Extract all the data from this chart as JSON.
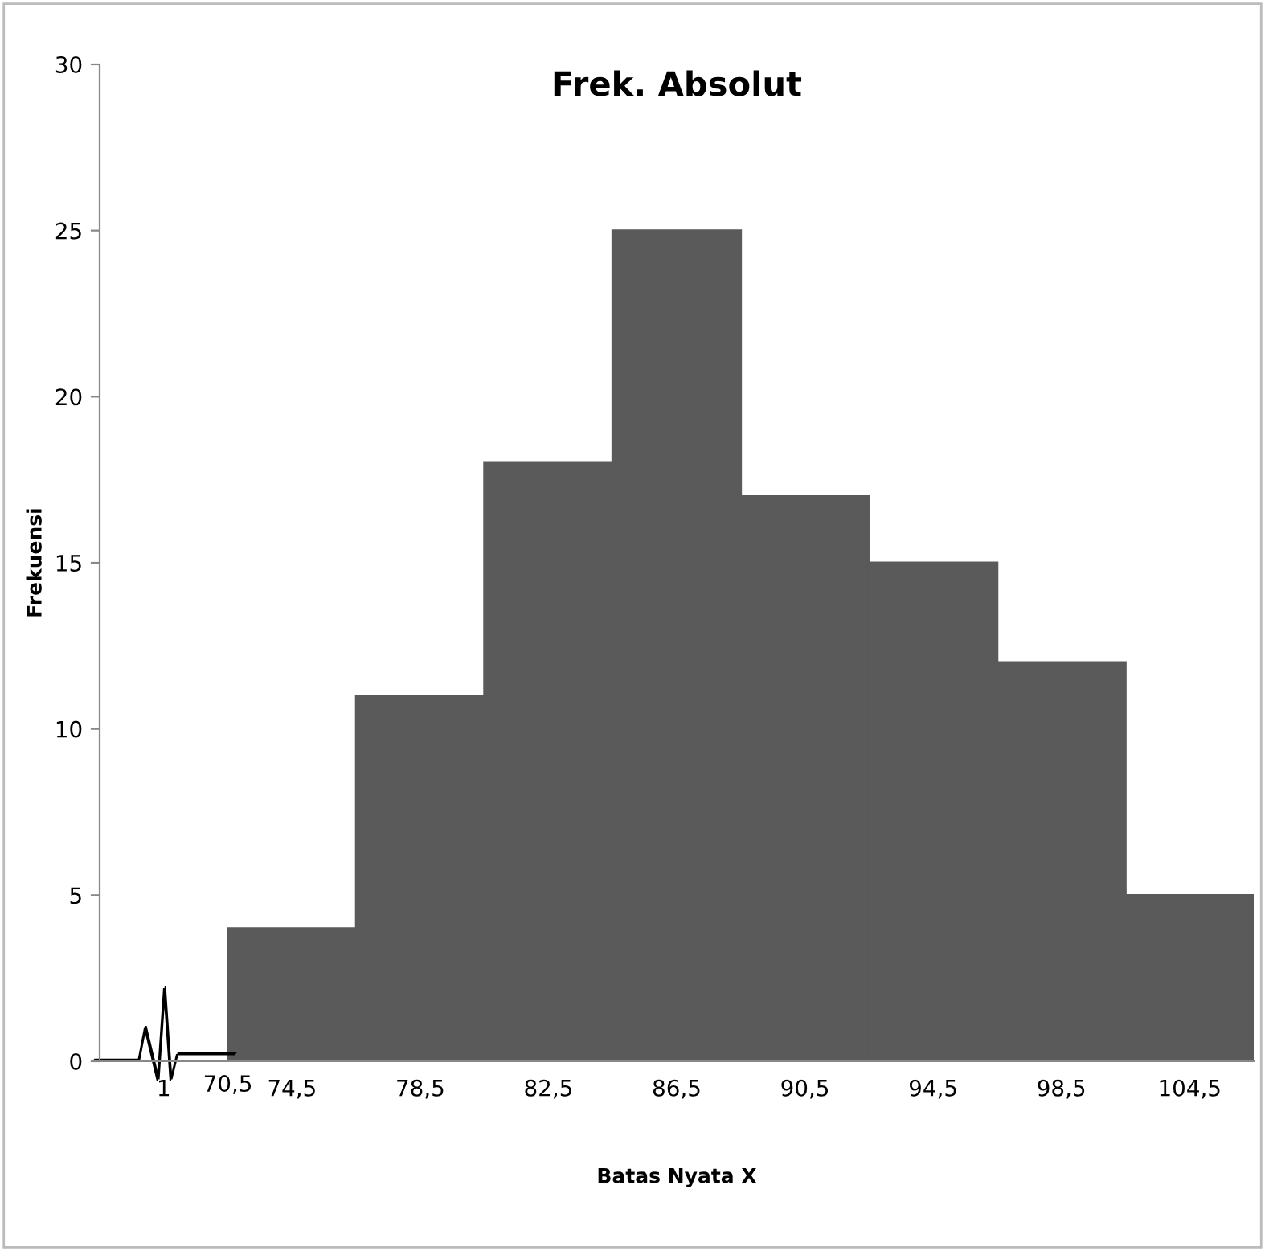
{
  "chart_data": {
    "type": "bar",
    "title": "Frek. Absolut",
    "xlabel": "Batas Nyata X",
    "ylabel": "Frekuensi",
    "categories": [
      "1",
      "74,5",
      "78,5",
      "82,5",
      "86,5",
      "90,5",
      "94,5",
      "98,5",
      "104,5"
    ],
    "values": [
      null,
      4,
      11,
      18,
      25,
      17,
      15,
      12,
      5
    ],
    "color": "#5a5a5a",
    "ylim": [
      0,
      30
    ],
    "yticks": [
      0,
      5,
      10,
      15,
      20,
      25,
      30
    ],
    "grid": false,
    "annotations": [
      "70,5"
    ]
  }
}
